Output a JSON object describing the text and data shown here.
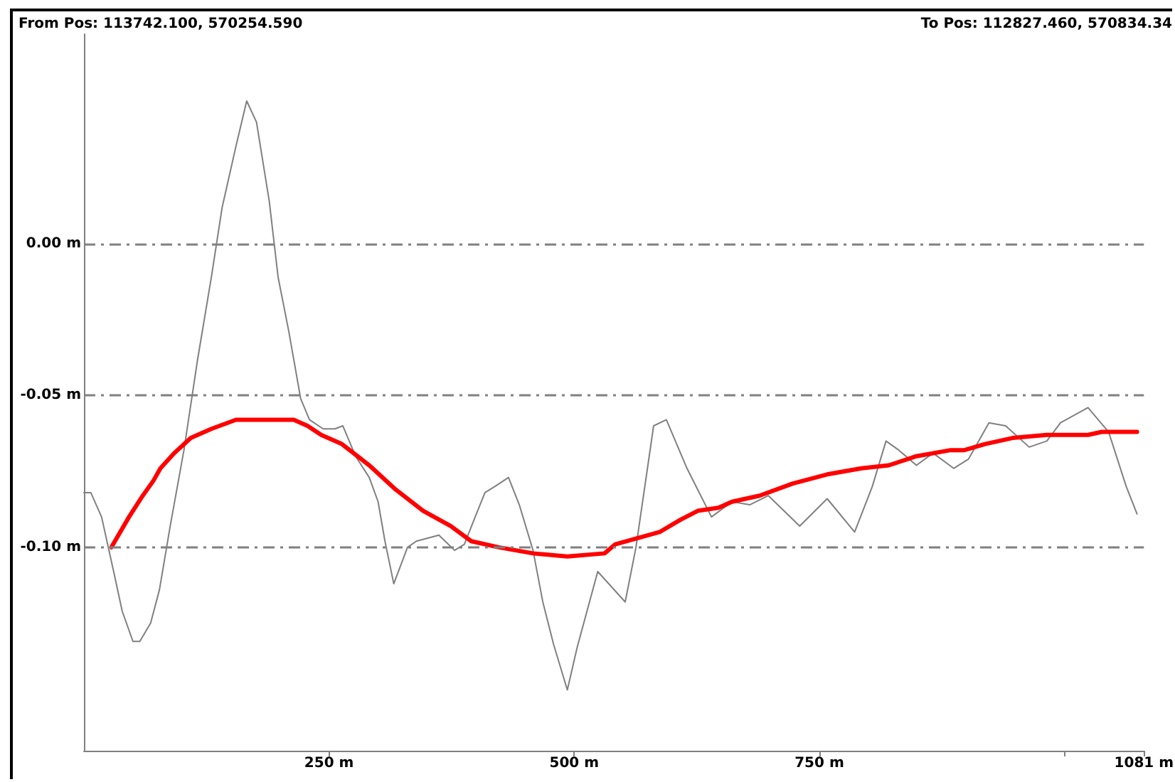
{
  "chart_data": {
    "type": "line",
    "annotations": [
      "From Pos: 113742.100, 570254.590",
      "To Pos: 112827.460, 570834.34"
    ],
    "xlim": [
      0,
      1081
    ],
    "xticks": [
      {
        "value": 250,
        "label": "250 m"
      },
      {
        "value": 500,
        "label": "500 m"
      },
      {
        "value": 750,
        "label": "750 m"
      },
      {
        "value": 1000,
        "label": null
      },
      {
        "value": 1081,
        "label": "1081 m"
      }
    ],
    "ylim": [
      -0.167,
      0.069
    ],
    "yticks": [
      {
        "value": -0.1,
        "label": "-0.10 m"
      },
      {
        "value": -0.05,
        "label": "-0.05 m"
      },
      {
        "value": 0,
        "label": "0.00 m"
      }
    ],
    "grid": "y",
    "marker": "none",
    "series": [
      {
        "color": "#808080",
        "x": [
          0,
          7,
          18,
          31,
          39,
          50,
          57,
          68,
          77,
          88,
          102,
          116,
          130,
          141,
          155,
          166,
          176,
          189,
          198,
          209,
          221,
          230,
          244,
          256,
          264,
          277,
          291,
          300,
          307,
          316,
          330,
          339,
          362,
          378,
          388,
          399,
          409,
          419,
          433,
          444,
          458,
          468,
          479,
          493,
          503,
          524,
          552,
          563,
          581,
          594,
          615,
          640,
          661,
          679,
          698,
          730,
          758,
          786,
          804,
          818,
          831,
          849,
          866,
          887,
          902,
          923,
          940,
          964,
          982,
          996,
          1024,
          1045,
          1063,
          1074
        ],
        "values": [
          -0.082,
          -0.082,
          -0.09,
          -0.109,
          -0.121,
          -0.131,
          -0.131,
          -0.125,
          -0.114,
          -0.093,
          -0.068,
          -0.038,
          -0.011,
          0.012,
          0.032,
          0.047,
          0.04,
          0.014,
          -0.011,
          -0.029,
          -0.051,
          -0.058,
          -0.061,
          -0.061,
          -0.06,
          -0.07,
          -0.077,
          -0.085,
          -0.098,
          -0.112,
          -0.1,
          -0.098,
          -0.096,
          -0.101,
          -0.099,
          -0.09,
          -0.082,
          -0.08,
          -0.077,
          -0.086,
          -0.101,
          -0.118,
          -0.132,
          -0.147,
          -0.133,
          -0.108,
          -0.118,
          -0.1,
          -0.06,
          -0.058,
          -0.074,
          -0.09,
          -0.085,
          -0.086,
          -0.083,
          -0.093,
          -0.084,
          -0.095,
          -0.08,
          -0.065,
          -0.068,
          -0.073,
          -0.069,
          -0.074,
          -0.071,
          -0.059,
          -0.06,
          -0.067,
          -0.065,
          -0.059,
          -0.054,
          -0.062,
          -0.08,
          -0.089
        ]
      },
      {
        "color": "#ff0000",
        "x": [
          28,
          46,
          60,
          71,
          78,
          92,
          109,
          130,
          155,
          179,
          214,
          228,
          242,
          263,
          291,
          318,
          346,
          374,
          395,
          423,
          458,
          493,
          531,
          542,
          587,
          608,
          626,
          647,
          661,
          689,
          723,
          758,
          793,
          821,
          849,
          884,
          898,
          919,
          947,
          982,
          1024,
          1038,
          1074
        ],
        "values": [
          -0.1,
          -0.09,
          -0.083,
          -0.078,
          -0.074,
          -0.069,
          -0.064,
          -0.061,
          -0.058,
          -0.058,
          -0.058,
          -0.06,
          -0.063,
          -0.066,
          -0.073,
          -0.081,
          -0.088,
          -0.093,
          -0.098,
          -0.1,
          -0.102,
          -0.103,
          -0.102,
          -0.099,
          -0.095,
          -0.091,
          -0.088,
          -0.087,
          -0.085,
          -0.083,
          -0.079,
          -0.076,
          -0.074,
          -0.073,
          -0.07,
          -0.068,
          -0.068,
          -0.066,
          -0.064,
          -0.063,
          -0.063,
          -0.062,
          -0.062
        ]
      }
    ]
  }
}
